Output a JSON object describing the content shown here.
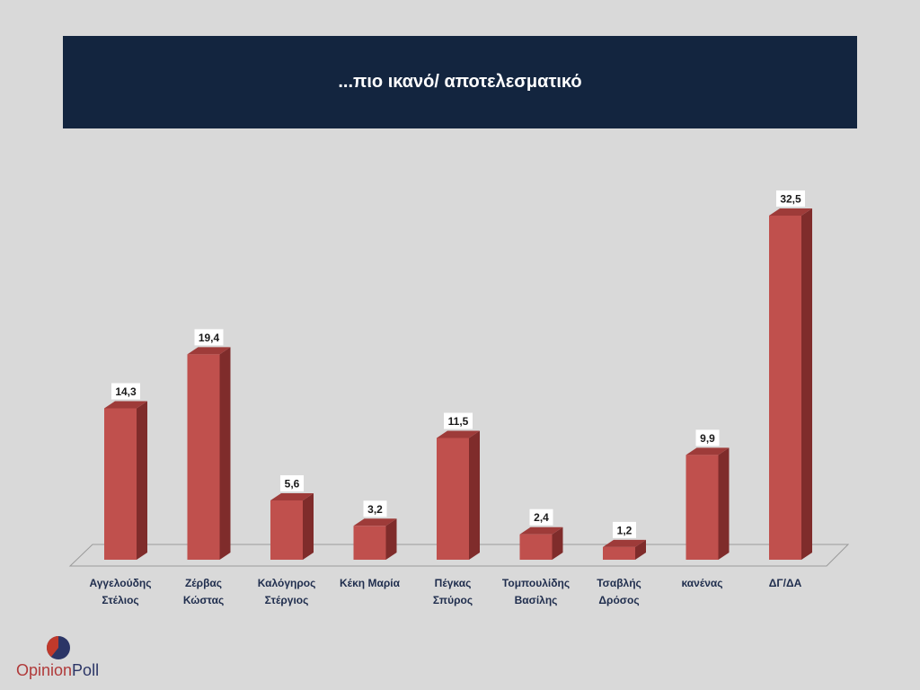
{
  "title": "...πιο ικανό/ αποτελεσματικό",
  "logo": {
    "text_part1": "Opinion",
    "text_part2": "Poll"
  },
  "colors": {
    "banner": "#13253f",
    "bar_front": "#c0504d",
    "bar_side": "#7f2c2b",
    "bar_top": "#9e3b39",
    "background": "#d9d9d9"
  },
  "chart_data": {
    "type": "bar",
    "title": "...πιο ικανό/ αποτελεσματικό",
    "xlabel": "",
    "ylabel": "",
    "grid": false,
    "categories": [
      [
        "Αγγελούδης",
        "Στέλιος"
      ],
      [
        "Ζέρβας",
        "Κώστας"
      ],
      [
        "Καλόγηρος",
        "Στέργιος"
      ],
      [
        "Κέκη Μαρία"
      ],
      [
        "Πέγκας",
        "Σπύρος"
      ],
      [
        "Τομπουλίδης",
        "Βασίλης"
      ],
      [
        "Τσαβλής",
        "Δρόσος"
      ],
      [
        "κανένας"
      ],
      [
        "ΔΓ/ΔΑ"
      ]
    ],
    "values": [
      14.3,
      19.4,
      5.6,
      3.2,
      11.5,
      2.4,
      1.2,
      9.9,
      32.5
    ],
    "value_labels": [
      "14,3",
      "19,4",
      "5,6",
      "3,2",
      "11,5",
      "2,4",
      "1,2",
      "9,9",
      "32,5"
    ],
    "ylim": [
      0,
      32.5
    ]
  }
}
